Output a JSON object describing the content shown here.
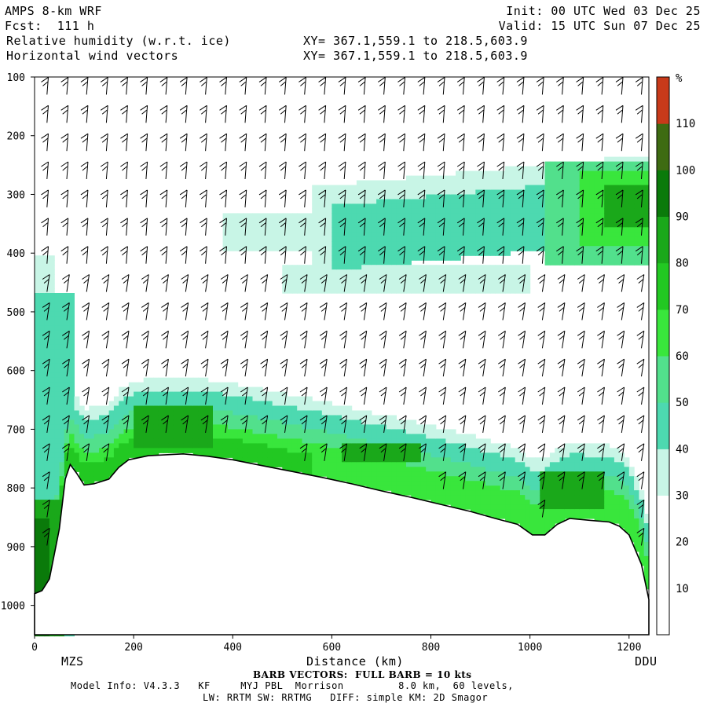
{
  "header": {
    "model": "AMPS 8-km WRF",
    "fcst": "Fcst:  111 h",
    "var1": "Relative humidity (w.r.t. ice)",
    "var2": "Horizontal wind vectors",
    "init": "Init: 00 UTC Wed 03 Dec 25",
    "valid": "Valid: 15 UTC Sun 07 Dec 25",
    "xy1": "XY= 367.1,559.1 to 218.5,603.9",
    "xy2": "XY= 367.1,559.1 to 218.5,603.9"
  },
  "footer": {
    "barb": "BARB VECTORS:  FULL BARB = 10 kts",
    "info1": "Model Info: V4.3.3   KF     MYJ PBL  Morrison         8.0 km,  60 levels,",
    "info2": "LW: RRTM SW: RRTMG   DIFF: simple KM: 2D Smagor"
  },
  "colorbar": {
    "unit": "%",
    "labels": [
      "10",
      "20",
      "30",
      "40",
      "50",
      "60",
      "70",
      "80",
      "90",
      "100",
      "110"
    ],
    "colors": [
      "#ffffff",
      "#ffffff",
      "#ffffff",
      "#c8f5e6",
      "#4dd9b0",
      "#52e08c",
      "#39e63c",
      "#22c822",
      "#1aa81a",
      "#0a7a0a",
      "#3e6b12",
      "#c83a1a"
    ]
  },
  "chart_data": {
    "type": "heatmap",
    "title": "Relative humidity (w.r.t. ice) / Horizontal wind vectors",
    "xlabel": "Distance (km)",
    "ylabel": "",
    "xlim": [
      0,
      1240
    ],
    "ylim": [
      1050,
      100
    ],
    "x_ticks": [
      0,
      200,
      400,
      600,
      800,
      1000,
      1200
    ],
    "y_ticks": [
      100,
      200,
      300,
      400,
      500,
      600,
      700,
      800,
      900,
      1000
    ],
    "x_endpoints": [
      "MZS",
      "DDU"
    ],
    "colorbar_levels": [
      10,
      20,
      30,
      40,
      50,
      60,
      70,
      80,
      90,
      100,
      110
    ],
    "terrain": [
      [
        0,
        980
      ],
      [
        15,
        975
      ],
      [
        30,
        955
      ],
      [
        50,
        870
      ],
      [
        62,
        785
      ],
      [
        72,
        760
      ],
      [
        85,
        775
      ],
      [
        100,
        795
      ],
      [
        120,
        793
      ],
      [
        150,
        785
      ],
      [
        170,
        765
      ],
      [
        190,
        752
      ],
      [
        230,
        745
      ],
      [
        300,
        742
      ],
      [
        350,
        746
      ],
      [
        400,
        752
      ],
      [
        460,
        762
      ],
      [
        520,
        772
      ],
      [
        580,
        782
      ],
      [
        640,
        793
      ],
      [
        700,
        805
      ],
      [
        760,
        816
      ],
      [
        820,
        828
      ],
      [
        880,
        840
      ],
      [
        930,
        852
      ],
      [
        975,
        862
      ],
      [
        1005,
        880
      ],
      [
        1030,
        880
      ],
      [
        1055,
        862
      ],
      [
        1080,
        852
      ],
      [
        1120,
        855
      ],
      [
        1160,
        858
      ],
      [
        1180,
        865
      ],
      [
        1200,
        880
      ],
      [
        1225,
        930
      ],
      [
        1240,
        990
      ]
    ]
  }
}
